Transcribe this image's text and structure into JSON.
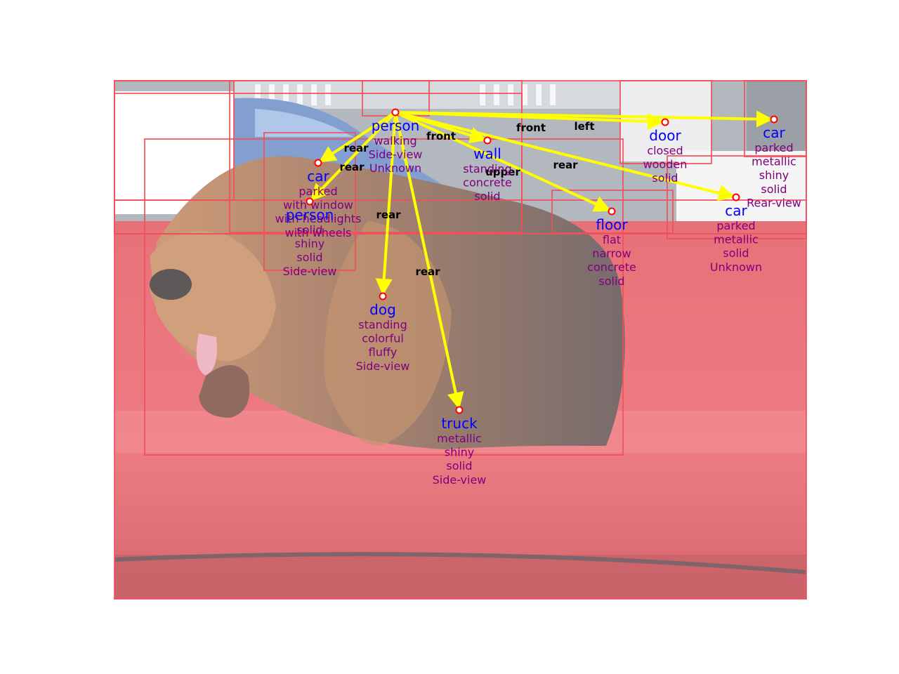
{
  "colors": {
    "box": "#f0505a",
    "arrow": "#ffff00",
    "node_name": "#0000ff",
    "node_attr": "#800080",
    "edge_label": "#000000",
    "marker_stroke": "#ff0000"
  },
  "nodes": [
    {
      "id": "person_top",
      "name": "person",
      "attrs": [
        "walking",
        "Side-view",
        "Unknown"
      ]
    },
    {
      "id": "car_left",
      "name": "car",
      "attrs": [
        "parked",
        "with  window",
        "with headlights",
        "with wheels"
      ]
    },
    {
      "id": "person_mid",
      "name": "person",
      "attrs": [
        "solid",
        "shiny",
        "solid",
        "Side-view"
      ]
    },
    {
      "id": "wall",
      "name": "wall",
      "attrs": [
        "standing",
        "concrete",
        "solid"
      ]
    },
    {
      "id": "door",
      "name": "door",
      "attrs": [
        "closed",
        "wooden",
        "solid"
      ]
    },
    {
      "id": "car_right_top",
      "name": "car",
      "attrs": [
        "parked",
        "metallic",
        "shiny",
        "solid",
        "Rear-view"
      ]
    },
    {
      "id": "car_right",
      "name": "car",
      "attrs": [
        "parked",
        "metallic",
        "solid",
        "Unknown"
      ]
    },
    {
      "id": "floor",
      "name": "floor",
      "attrs": [
        "flat",
        "narrow",
        "concrete",
        "solid"
      ]
    },
    {
      "id": "dog",
      "name": "dog",
      "attrs": [
        "standing",
        "colorful",
        "fluffy",
        "Side-view"
      ]
    },
    {
      "id": "truck",
      "name": "truck",
      "attrs": [
        "metallic",
        "shiny",
        "solid",
        "Side-view"
      ]
    }
  ],
  "edges": [
    {
      "from": "person_top",
      "to": "car_left",
      "label": "rear"
    },
    {
      "from": "person_top",
      "to": "person_mid",
      "label": "rear"
    },
    {
      "from": "person_top",
      "to": "dog",
      "label": "rear"
    },
    {
      "from": "person_top",
      "to": "truck",
      "label": "rear"
    },
    {
      "from": "person_top",
      "to": "wall",
      "label": "front"
    },
    {
      "from": "person_top",
      "to": "floor",
      "label": "upper"
    },
    {
      "from": "person_top",
      "to": "door",
      "label": "front"
    },
    {
      "from": "person_top",
      "to": "car_right_top",
      "label": "left"
    },
    {
      "from": "person_top",
      "to": "car_right",
      "label": "rear"
    }
  ]
}
